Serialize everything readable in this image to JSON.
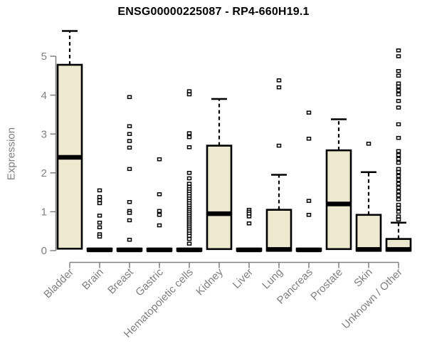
{
  "chart_data": {
    "type": "boxplot",
    "title": "ENSG00000225087 - RP4-660H19.1",
    "ylabel": "Expression",
    "xlabel": "",
    "ylim": [
      0,
      5
    ],
    "yticks": [
      0,
      1,
      2,
      3,
      4,
      5
    ],
    "grid": false,
    "legend": null,
    "categories": [
      "Bladder",
      "Brain",
      "Breast",
      "Gastric",
      "Hematopoietic cells",
      "Kidney",
      "Liver",
      "Lung",
      "Pancreas",
      "Prostate",
      "Skin",
      "Unknown / Other"
    ],
    "boxes": [
      {
        "category": "Bladder",
        "q1": 0.05,
        "median": 2.4,
        "q3": 4.78,
        "whisker_low": 0.05,
        "whisker_high": 5.65,
        "outliers": []
      },
      {
        "category": "Brain",
        "q1": 0,
        "median": 0.02,
        "q3": 0.05,
        "whisker_low": 0,
        "whisker_high": 0.05,
        "outliers": [
          1.55,
          1.38,
          1.3,
          1.22,
          0.9,
          0.72,
          0.6,
          0.42,
          0.36
        ]
      },
      {
        "category": "Breast",
        "q1": 0,
        "median": 0.02,
        "q3": 0.05,
        "whisker_low": 0,
        "whisker_high": 0.05,
        "outliers": [
          3.95,
          3.2,
          3.0,
          2.82,
          2.65,
          2.1,
          1.25,
          1.02,
          0.97,
          0.78,
          0.28
        ]
      },
      {
        "category": "Gastric",
        "q1": 0,
        "median": 0.02,
        "q3": 0.05,
        "whisker_low": 0,
        "whisker_high": 0.05,
        "outliers": [
          2.35,
          1.45,
          1.02,
          0.92,
          0.65
        ]
      },
      {
        "category": "Hematopoietic cells",
        "q1": 0,
        "median": 0.02,
        "q3": 0.05,
        "whisker_low": 0,
        "whisker_high": 0.05,
        "outliers": [
          4.1,
          4.02,
          3.02,
          2.92,
          2.66,
          2.0,
          1.86,
          1.72,
          1.64,
          1.58,
          1.52,
          1.46,
          1.4,
          1.34,
          1.28,
          1.22,
          1.16,
          1.1,
          1.05,
          1.0,
          0.95,
          0.9,
          0.85,
          0.8,
          0.75,
          0.7,
          0.65,
          0.6,
          0.55,
          0.5,
          0.44,
          0.38,
          0.3,
          0.18
        ]
      },
      {
        "category": "Kidney",
        "q1": 0.04,
        "median": 0.95,
        "q3": 2.7,
        "whisker_low": 0.04,
        "whisker_high": 3.9,
        "outliers": []
      },
      {
        "category": "Liver",
        "q1": 0,
        "median": 0.02,
        "q3": 0.05,
        "whisker_low": 0,
        "whisker_high": 0.05,
        "outliers": [
          1.05,
          1.0,
          0.95,
          0.88,
          0.7
        ]
      },
      {
        "category": "Lung",
        "q1": 0,
        "median": 0.03,
        "q3": 1.05,
        "whisker_low": 0,
        "whisker_high": 1.95,
        "outliers": [
          4.38,
          4.2,
          2.7
        ]
      },
      {
        "category": "Pancreas",
        "q1": 0,
        "median": 0.02,
        "q3": 0.05,
        "whisker_low": 0,
        "whisker_high": 0.05,
        "outliers": [
          3.55,
          2.88,
          1.28,
          0.92
        ]
      },
      {
        "category": "Prostate",
        "q1": 0.04,
        "median": 1.2,
        "q3": 2.58,
        "whisker_low": 0.04,
        "whisker_high": 3.38,
        "outliers": []
      },
      {
        "category": "Skin",
        "q1": 0,
        "median": 0.03,
        "q3": 0.92,
        "whisker_low": 0,
        "whisker_high": 2.02,
        "outliers": [
          2.75
        ]
      },
      {
        "category": "Unknown / Other",
        "q1": 0,
        "median": 0.03,
        "q3": 0.3,
        "whisker_low": 0,
        "whisker_high": 0.72,
        "outliers": [
          5.15,
          5.0,
          4.62,
          4.5,
          4.3,
          4.22,
          4.12,
          4.02,
          3.85,
          3.68,
          3.25,
          2.9,
          2.56,
          2.46,
          2.36,
          2.26,
          2.1,
          2.02,
          1.92,
          1.82,
          1.72,
          1.62,
          1.52,
          1.42,
          1.32,
          1.18,
          1.1,
          1.0,
          0.88,
          0.8
        ]
      }
    ],
    "style": {
      "box_fill": "#EDE8D0",
      "box_border": "#000000",
      "median_color": "#000000",
      "outlier_fill": "#FFFFFF",
      "axis_color": "#808080",
      "title_color": "#000000",
      "background": "#FFFFFF"
    }
  }
}
